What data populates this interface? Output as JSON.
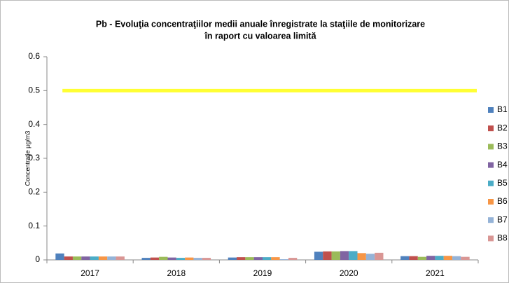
{
  "chart_data": {
    "type": "bar",
    "title": [
      "Pb - Evoluţia concentraţiilor medii anuale înregistrate la staţiile de monitorizare",
      "în raport cu valoarea limită"
    ],
    "y_label": "Concentraţie µg/m3",
    "categories": [
      "2017",
      "2018",
      "2019",
      "2020",
      "2021"
    ],
    "series": [
      {
        "name": "B1",
        "color": "#4f81bd",
        "values": [
          0.019,
          0.006,
          0.007,
          0.024,
          0.011
        ]
      },
      {
        "name": "B2",
        "color": "#c0504d",
        "values": [
          0.01,
          0.007,
          0.008,
          0.025,
          0.011
        ]
      },
      {
        "name": "B3",
        "color": "#9bbb59",
        "values": [
          0.01,
          0.009,
          0.008,
          0.025,
          0.009
        ]
      },
      {
        "name": "B4",
        "color": "#8064a2",
        "values": [
          0.01,
          0.007,
          0.008,
          0.026,
          0.012
        ]
      },
      {
        "name": "B5",
        "color": "#4bacc6",
        "values": [
          0.01,
          0.006,
          0.008,
          0.026,
          0.012
        ]
      },
      {
        "name": "B6",
        "color": "#f79646",
        "values": [
          0.01,
          0.007,
          0.008,
          0.02,
          0.012
        ]
      },
      {
        "name": "B7",
        "color": "#95b3d7",
        "values": [
          0.01,
          0.006,
          0.002,
          0.018,
          0.011
        ]
      },
      {
        "name": "B8",
        "color": "#d99694",
        "values": [
          0.01,
          0.006,
          0.006,
          0.021,
          0.009
        ]
      }
    ],
    "limit": {
      "value": 0.5,
      "color": "#ffff33"
    },
    "ylim": [
      0,
      0.6
    ],
    "yticks": [
      0,
      0.1,
      0.2,
      0.3,
      0.4,
      0.5,
      0.6
    ],
    "grid": false,
    "legend": "right"
  }
}
